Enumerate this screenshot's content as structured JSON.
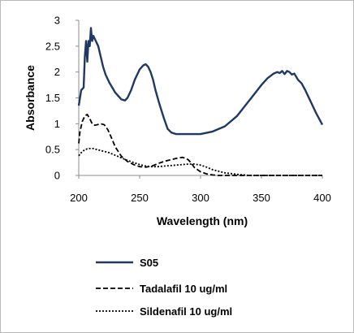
{
  "chart_data": {
    "type": "line",
    "xlabel": "Wavelength (nm)",
    "ylabel": "Absorbance",
    "xlim": [
      200,
      400
    ],
    "ylim": [
      0,
      3
    ],
    "xticks": [
      "200",
      "250",
      "300",
      "350",
      "400"
    ],
    "yticks": [
      "0",
      "0.5",
      "1",
      "1.5",
      "2",
      "2.5",
      "3"
    ],
    "grid": false,
    "legend_position": "bottom",
    "series": [
      {
        "name": "S05",
        "color": "#1f3864",
        "style": "solid",
        "x": [
          200,
          202,
          204,
          205,
          206,
          207,
          208,
          209,
          210,
          211,
          212,
          214,
          216,
          218,
          220,
          222,
          225,
          230,
          235,
          238,
          240,
          243,
          246,
          250,
          253,
          255,
          257,
          259,
          261,
          263,
          266,
          270,
          273,
          276,
          280,
          285,
          290,
          300,
          310,
          320,
          330,
          340,
          350,
          355,
          360,
          363,
          365,
          367,
          369,
          371,
          373,
          375,
          377,
          380,
          383,
          386,
          390,
          395,
          400
        ],
        "y": [
          1.35,
          1.65,
          1.7,
          2.3,
          2.6,
          2.2,
          2.6,
          2.5,
          2.85,
          2.6,
          2.7,
          2.6,
          2.5,
          2.3,
          2.1,
          1.95,
          1.8,
          1.6,
          1.47,
          1.45,
          1.5,
          1.65,
          1.85,
          2.05,
          2.13,
          2.15,
          2.1,
          2.0,
          1.85,
          1.65,
          1.4,
          1.1,
          0.9,
          0.83,
          0.8,
          0.8,
          0.8,
          0.8,
          0.85,
          0.95,
          1.15,
          1.45,
          1.75,
          1.88,
          1.97,
          2.0,
          1.98,
          2.02,
          1.96,
          2.02,
          2.0,
          1.95,
          1.97,
          1.85,
          1.78,
          1.65,
          1.45,
          1.2,
          0.98
        ]
      },
      {
        "name": "Tadalafil 10 ug/ml",
        "color": "#000000",
        "style": "dashed",
        "x": [
          200,
          201,
          203,
          205,
          207,
          209,
          211,
          213,
          215,
          218,
          221,
          224,
          227,
          230,
          235,
          240,
          245,
          250,
          255,
          260,
          265,
          270,
          275,
          280,
          285,
          288,
          290,
          292,
          295,
          300,
          305,
          310,
          315,
          320,
          330,
          340,
          350,
          360,
          380,
          400
        ],
        "y": [
          0.62,
          0.85,
          1.05,
          1.15,
          1.18,
          1.1,
          1.0,
          0.97,
          0.98,
          1.0,
          0.98,
          0.88,
          0.72,
          0.55,
          0.37,
          0.27,
          0.21,
          0.17,
          0.16,
          0.18,
          0.23,
          0.27,
          0.3,
          0.33,
          0.35,
          0.33,
          0.3,
          0.25,
          0.15,
          0.07,
          0.03,
          0.01,
          0.0,
          0.0,
          0.0,
          0.0,
          0.0,
          0.0,
          0.0,
          0.0
        ]
      },
      {
        "name": "Sildenafil 10 ug/ml",
        "color": "#000000",
        "style": "dotted",
        "x": [
          200,
          202,
          205,
          208,
          212,
          215,
          220,
          225,
          230,
          235,
          240,
          245,
          250,
          255,
          260,
          265,
          270,
          275,
          280,
          285,
          290,
          295,
          300,
          305,
          310,
          315,
          320,
          330,
          340,
          350,
          360,
          380,
          400
        ],
        "y": [
          0.38,
          0.44,
          0.5,
          0.52,
          0.52,
          0.5,
          0.47,
          0.44,
          0.39,
          0.34,
          0.29,
          0.25,
          0.21,
          0.18,
          0.17,
          0.17,
          0.18,
          0.19,
          0.2,
          0.21,
          0.22,
          0.22,
          0.2,
          0.16,
          0.11,
          0.08,
          0.05,
          0.02,
          0.0,
          0.0,
          0.0,
          0.0,
          0.0
        ]
      }
    ]
  }
}
